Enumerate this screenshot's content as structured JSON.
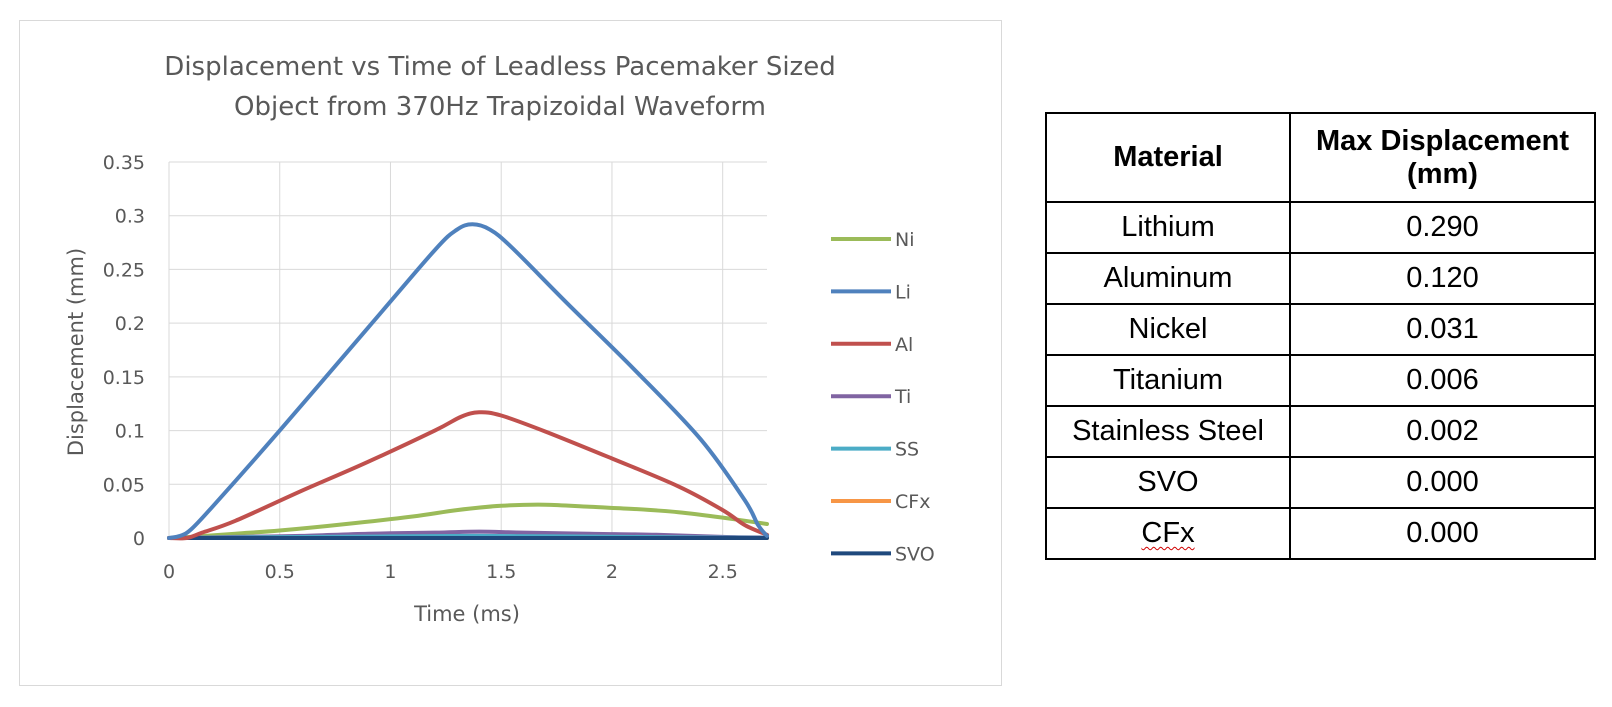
{
  "chart_data": {
    "type": "line",
    "title": "Displacement vs Time of Leadless Pacemaker Sized Object from 370Hz Trapizoidal Waveform",
    "title_lines": [
      "Displacement vs Time of Leadless Pacemaker Sized",
      "Object from 370Hz Trapizoidal Waveform"
    ],
    "xlabel": "Time (ms)",
    "ylabel": "Displacement (mm)",
    "xlim": [
      0,
      2.7
    ],
    "ylim": [
      0,
      0.35
    ],
    "xticks": [
      0,
      0.5,
      1,
      1.5,
      2,
      2.5
    ],
    "xtick_labels": [
      "0",
      "0.5",
      "1",
      "1.5",
      "2",
      "2.5"
    ],
    "yticks": [
      0,
      0.05,
      0.1,
      0.15,
      0.2,
      0.25,
      0.3,
      0.35
    ],
    "ytick_labels": [
      "0",
      "0.05",
      "0.1",
      "0.15",
      "0.2",
      "0.25",
      "0.3",
      "0.35"
    ],
    "grid": true,
    "legend_position": "right",
    "series": [
      {
        "name": "Ni",
        "color": "#9bbb59",
        "x": [
          0,
          0.1,
          0.3,
          0.5,
          0.8,
          1.1,
          1.3,
          1.5,
          1.7,
          1.9,
          2.1,
          2.3,
          2.5,
          2.7
        ],
        "y": [
          0,
          0.001,
          0.004,
          0.007,
          0.013,
          0.02,
          0.026,
          0.03,
          0.031,
          0.029,
          0.027,
          0.024,
          0.019,
          0.013
        ]
      },
      {
        "name": "Li",
        "color": "#4f81bd",
        "x": [
          0,
          0.05,
          0.1,
          0.2,
          0.5,
          0.9,
          1.2,
          1.3,
          1.37,
          1.45,
          1.55,
          1.8,
          2.1,
          2.4,
          2.6,
          2.66,
          2.7
        ],
        "y": [
          0,
          0.002,
          0.008,
          0.03,
          0.1,
          0.196,
          0.268,
          0.287,
          0.292,
          0.287,
          0.27,
          0.218,
          0.157,
          0.092,
          0.035,
          0.012,
          0.002
        ]
      },
      {
        "name": "Al",
        "color": "#c0504d",
        "x": [
          0,
          0.08,
          0.15,
          0.3,
          0.6,
          0.9,
          1.2,
          1.32,
          1.4,
          1.5,
          1.7,
          2.0,
          2.3,
          2.5,
          2.6,
          2.7
        ],
        "y": [
          0,
          0.0,
          0.005,
          0.016,
          0.044,
          0.071,
          0.1,
          0.113,
          0.117,
          0.114,
          0.099,
          0.074,
          0.048,
          0.026,
          0.012,
          0.003
        ]
      },
      {
        "name": "Ti",
        "color": "#8064a2",
        "x": [
          0,
          0.3,
          0.6,
          0.9,
          1.2,
          1.4,
          1.6,
          1.9,
          2.2,
          2.5,
          2.7
        ],
        "y": [
          0,
          0.001,
          0.002,
          0.004,
          0.005,
          0.006,
          0.005,
          0.004,
          0.003,
          0.001,
          0.0005
        ]
      },
      {
        "name": "SS",
        "color": "#4bacc6",
        "x": [
          0,
          0.5,
          1.0,
          1.4,
          1.8,
          2.2,
          2.7
        ],
        "y": [
          0,
          0.0008,
          0.0015,
          0.002,
          0.0015,
          0.0008,
          0.0002
        ]
      },
      {
        "name": "CFx",
        "color": "#f79646",
        "x": [
          0,
          2.7
        ],
        "y": [
          0,
          0
        ]
      },
      {
        "name": "SVO",
        "color": "#1f497d",
        "x": [
          0,
          2.7
        ],
        "y": [
          0,
          0
        ]
      }
    ]
  },
  "table": {
    "headers": [
      "Material",
      "Max Displacement (mm)"
    ],
    "header_lines": [
      [
        "Material"
      ],
      [
        "Max Displacement",
        "(mm)"
      ]
    ],
    "rows": [
      [
        "Lithium",
        "0.290"
      ],
      [
        "Aluminum",
        "0.120"
      ],
      [
        "Nickel",
        "0.031"
      ],
      [
        "Titanium",
        "0.006"
      ],
      [
        "Stainless Steel",
        "0.002"
      ],
      [
        "SVO",
        "0.000"
      ],
      [
        "CFx",
        "0.000"
      ]
    ]
  }
}
